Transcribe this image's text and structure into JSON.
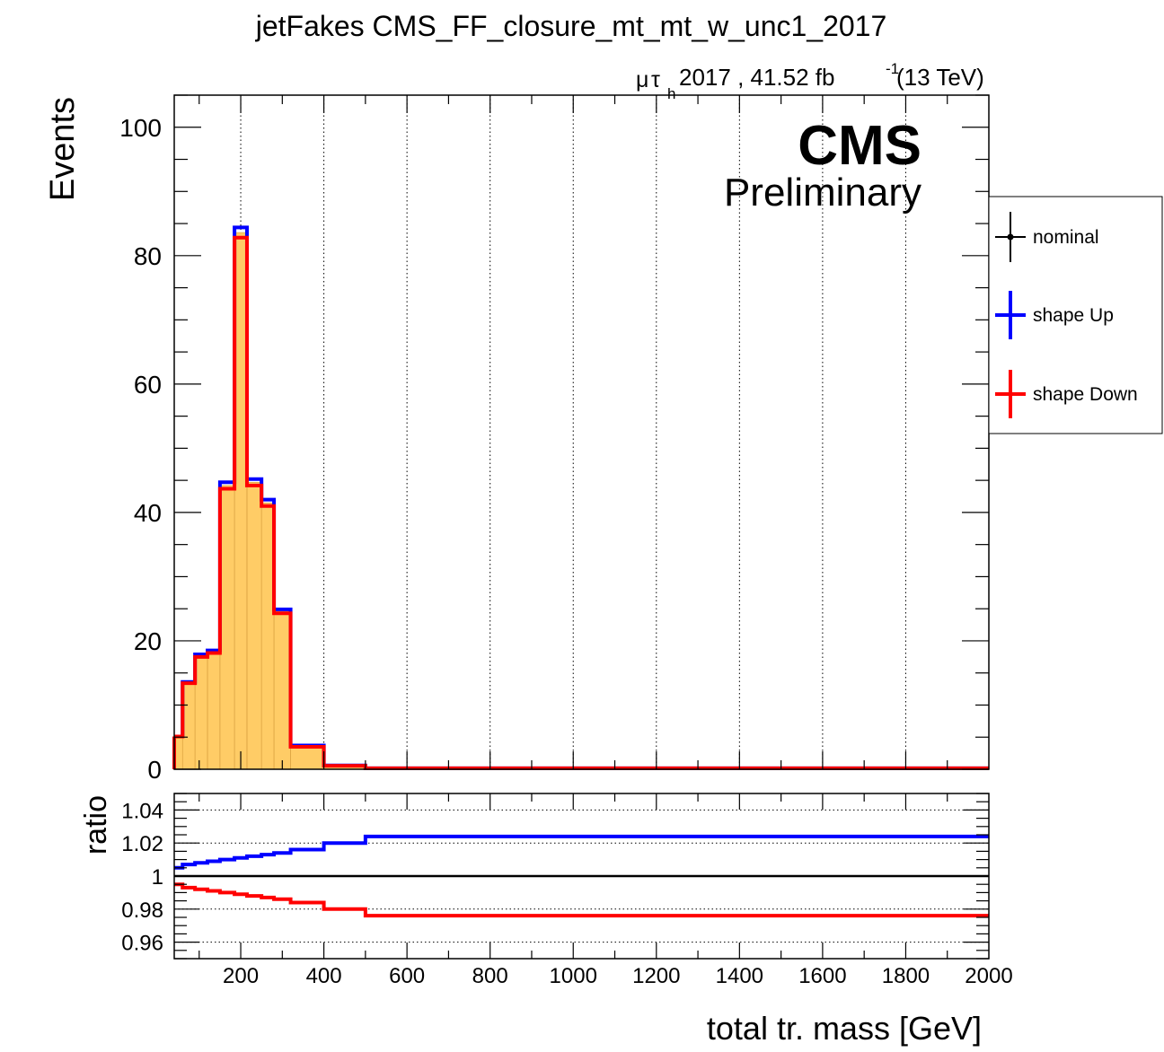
{
  "chart_data": [
    {
      "type": "line",
      "panel": "main",
      "title": "jetFakes CMS_FF_closure_mt_mt_w_unc1_2017",
      "lumi_label": {
        "mu": "μ",
        "tau": "τ",
        "sub": "h",
        "main": " 2017 , 41.52 fb",
        "sup": "-1",
        "tail": " (13 TeV)"
      },
      "cms_label": "CMS",
      "cms_sublabel": "Preliminary",
      "xlabel": "total tr. mass [GeV]",
      "ylabel": "Events",
      "xlim": [
        40,
        2000
      ],
      "ylim": [
        0,
        105
      ],
      "grid": "vertical dotted",
      "x_ticks": [
        200,
        400,
        600,
        800,
        1000,
        1200,
        1400,
        1600,
        1800,
        2000
      ],
      "x_tick_labels": [
        "200",
        "400",
        "600",
        "800",
        "1000",
        "1200",
        "1400",
        "1600",
        "1800",
        "2000"
      ],
      "y_ticks": [
        0,
        20,
        40,
        60,
        80,
        100
      ],
      "y_tick_labels": [
        "0",
        "20",
        "40",
        "60",
        "80",
        "100"
      ],
      "bin_edges": [
        40,
        60,
        90,
        120,
        150,
        185,
        215,
        250,
        280,
        320,
        400,
        500,
        2000
      ],
      "legend_position": "right, outside plot",
      "series": [
        {
          "name": "nominal",
          "color": "#ffcc66",
          "style": "filled histogram",
          "values": [
            5.1,
            13.5,
            17.7,
            18.3,
            44.2,
            83.6,
            44.7,
            41.5,
            24.6,
            3.6,
            0.6,
            0.15
          ]
        },
        {
          "name": "shape Up",
          "color": "#0000ff",
          "style": "step line",
          "values": [
            5.1,
            13.6,
            17.9,
            18.5,
            44.7,
            84.4,
            45.2,
            42.0,
            24.9,
            3.7,
            0.6,
            0.15
          ]
        },
        {
          "name": "shape Down",
          "color": "#ff0000",
          "style": "step line",
          "values": [
            5.1,
            13.4,
            17.5,
            18.1,
            43.7,
            82.8,
            44.2,
            41.0,
            24.3,
            3.5,
            0.55,
            0.15
          ]
        }
      ]
    },
    {
      "type": "line",
      "panel": "ratio",
      "ylabel": "ratio",
      "xlim": [
        40,
        2000
      ],
      "ylim": [
        0.95,
        1.05
      ],
      "grid": "horizontal dotted",
      "y_ticks": [
        0.96,
        0.98,
        1,
        1.02,
        1.04
      ],
      "y_tick_labels": [
        "0.96",
        "0.98",
        "1",
        "1.02",
        "1.04"
      ],
      "reference_line": 1,
      "bin_edges": [
        40,
        60,
        90,
        120,
        150,
        185,
        215,
        250,
        280,
        320,
        400,
        500,
        2000
      ],
      "series": [
        {
          "name": "shape Up",
          "color": "#0000ff",
          "values": [
            1.005,
            1.007,
            1.008,
            1.009,
            1.01,
            1.011,
            1.012,
            1.013,
            1.014,
            1.016,
            1.02,
            1.024
          ]
        },
        {
          "name": "shape Down",
          "color": "#ff0000",
          "values": [
            0.995,
            0.993,
            0.992,
            0.991,
            0.99,
            0.989,
            0.988,
            0.987,
            0.986,
            0.984,
            0.98,
            0.976
          ]
        }
      ]
    }
  ]
}
